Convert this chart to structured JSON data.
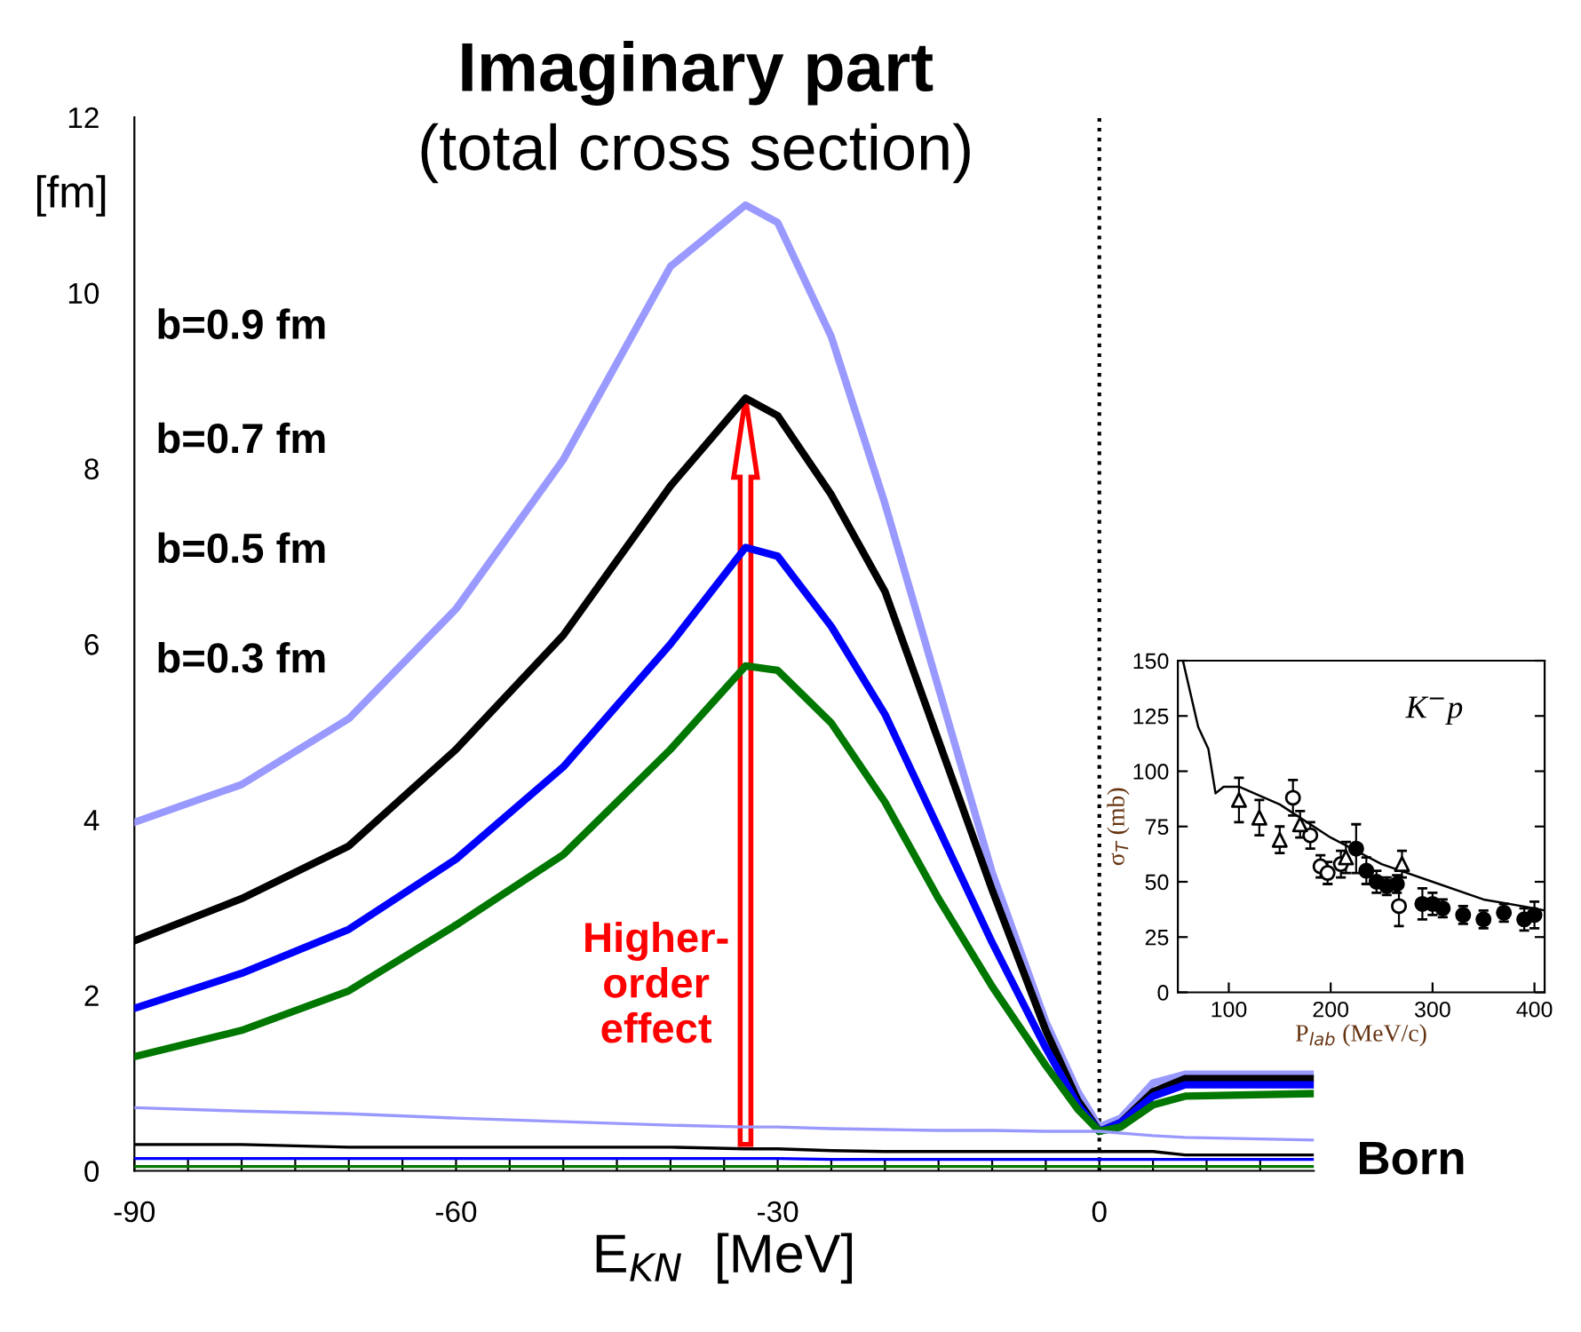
{
  "chart_data": [
    {
      "type": "line",
      "title": "Imaginary part",
      "subtitle": "(total cross section)",
      "xlabel": "E$_{KN}$  [MeV]",
      "ylabel": "[fm]",
      "x": [
        -90,
        -80,
        -70,
        -60,
        -50,
        -40,
        -33,
        -30,
        -25,
        -20,
        -15,
        -10,
        -5,
        -2,
        0,
        2,
        5,
        8,
        20
      ],
      "series": [
        {
          "color": "#9999ff",
          "values": [
            3.97,
            4.4,
            5.15,
            6.4,
            8.1,
            10.3,
            11.0,
            10.8,
            9.5,
            7.6,
            5.5,
            3.4,
            1.7,
            0.9,
            0.5,
            0.6,
            1.0,
            1.1,
            1.1
          ]
        },
        {
          "color": "#000000",
          "values": [
            2.62,
            3.1,
            3.7,
            4.8,
            6.1,
            7.8,
            8.8,
            8.6,
            7.7,
            6.6,
            4.9,
            3.2,
            1.6,
            0.8,
            0.45,
            0.55,
            0.9,
            1.05,
            1.05
          ]
        },
        {
          "color": "#0000ff",
          "values": [
            1.85,
            2.25,
            2.75,
            3.55,
            4.6,
            6.0,
            7.1,
            7.0,
            6.2,
            5.2,
            3.9,
            2.6,
            1.4,
            0.75,
            0.45,
            0.55,
            0.85,
            0.98,
            0.98
          ]
        },
        {
          "color": "#007700",
          "values": [
            1.3,
            1.6,
            2.05,
            2.8,
            3.6,
            4.8,
            5.75,
            5.7,
            5.1,
            4.2,
            3.1,
            2.1,
            1.2,
            0.7,
            0.45,
            0.5,
            0.75,
            0.85,
            0.88
          ]
        },
        {
          "color": "#9999ff",
          "values": [
            0.72,
            0.68,
            0.65,
            0.6,
            0.56,
            0.52,
            0.5,
            0.5,
            0.48,
            0.47,
            0.46,
            0.46,
            0.45,
            0.45,
            0.45,
            0.43,
            0.4,
            0.38,
            0.35
          ]
        },
        {
          "color": "#000000",
          "values": [
            0.3,
            0.3,
            0.27,
            0.27,
            0.27,
            0.27,
            0.25,
            0.25,
            0.23,
            0.22,
            0.22,
            0.22,
            0.22,
            0.22,
            0.22,
            0.22,
            0.22,
            0.18,
            0.18
          ]
        },
        {
          "color": "#0000ff",
          "values": [
            0.14,
            0.14,
            0.14,
            0.14,
            0.14,
            0.14,
            0.14,
            0.14,
            0.13,
            0.13,
            0.13,
            0.13,
            0.13,
            0.13,
            0.13,
            0.13,
            0.13,
            0.13,
            0.13
          ]
        },
        {
          "color": "#007700",
          "values": [
            0.05,
            0.05,
            0.05,
            0.05,
            0.05,
            0.05,
            0.05,
            0.05,
            0.05,
            0.05,
            0.05,
            0.05,
            0.05,
            0.05,
            0.05,
            0.05,
            0.05,
            0.05,
            0.05
          ]
        }
      ],
      "xlim": [
        -90,
        20
      ],
      "ylim": [
        0,
        12
      ],
      "xticks": [
        -90,
        {
          "value": -85,
          "label": null
        },
        {
          "value": -80,
          "label": null
        },
        {
          "value": -75,
          "label": null
        },
        {
          "value": -70,
          "label": null
        },
        {
          "value": -65,
          "label": null
        },
        -60,
        {
          "value": -55,
          "label": null
        },
        {
          "value": -50,
          "label": null
        },
        {
          "value": -45,
          "label": null
        },
        {
          "value": -40,
          "label": null
        },
        {
          "value": -35,
          "label": null
        },
        -30,
        {
          "value": -25,
          "label": null
        },
        {
          "value": -20,
          "label": null
        },
        {
          "value": -15,
          "label": null
        },
        {
          "value": -10,
          "label": null
        },
        {
          "value": -5,
          "label": null
        },
        0,
        {
          "value": 5,
          "label": null
        },
        {
          "value": 10,
          "label": null
        },
        {
          "value": 15,
          "label": null
        }
      ],
      "yticks": [
        0,
        2,
        4,
        6,
        8,
        10,
        12
      ],
      "ref_lines": [
        {
          "axis": "x",
          "value": 0,
          "color": "#000000",
          "line_style": "dotted"
        }
      ],
      "annotations": [
        "b=0.9 fm",
        "b=0.7 fm",
        "b=0.5 fm",
        "b=0.3 fm",
        "Higher-\norder\neffect",
        "Born"
      ],
      "grid": false,
      "marker": "none",
      "line_style": "solid"
    },
    {
      "type": "scatter",
      "xlabel": "P$_{lab}$ (MeV/c)",
      "ylabel": "σ$_{T}$ (mb)",
      "annotations": [
        "K$^{−}$p"
      ],
      "xlim": [
        50,
        410
      ],
      "ylim": [
        0,
        150
      ],
      "xticks": [
        100,
        200,
        300,
        400
      ],
      "yticks": [
        0,
        25,
        50,
        75,
        100,
        125,
        150
      ],
      "series": [
        {
          "type": "line",
          "color": "#000000",
          "marker": "none",
          "x": [
            55,
            70,
            80,
            87,
            95,
            110,
            150,
            200,
            250,
            300,
            350,
            400,
            410
          ],
          "values": [
            150,
            120,
            110,
            90,
            93,
            93,
            85,
            70,
            58,
            50,
            42,
            38,
            37
          ]
        },
        {
          "color": "#000000",
          "marker": "circle",
          "x": [
            163,
            180,
            190,
            197,
            210,
            267
          ],
          "values": [
            88,
            71,
            57,
            54,
            58,
            39
          ],
          "errors": [
            8,
            6,
            5,
            5,
            6,
            9
          ]
        },
        {
          "color": "#000000",
          "marker": "triangle",
          "x": [
            110,
            130,
            150,
            170,
            215,
            270
          ],
          "values": [
            87,
            79,
            69,
            76,
            61,
            58
          ],
          "errors": [
            10,
            8,
            6,
            6,
            7,
            6
          ]
        },
        {
          "color": "#000000",
          "marker": "circle",
          "x": [
            225,
            235,
            245,
            255,
            265,
            290,
            300,
            310,
            330,
            350,
            370,
            390,
            400
          ],
          "values": [
            65,
            55,
            50,
            48,
            49,
            40,
            40,
            38,
            35,
            33,
            36,
            33,
            35
          ],
          "errors": [
            11,
            6,
            5,
            4,
            4,
            7,
            5,
            4,
            4,
            4,
            4,
            5,
            6
          ]
        }
      ],
      "grid": false
    }
  ]
}
